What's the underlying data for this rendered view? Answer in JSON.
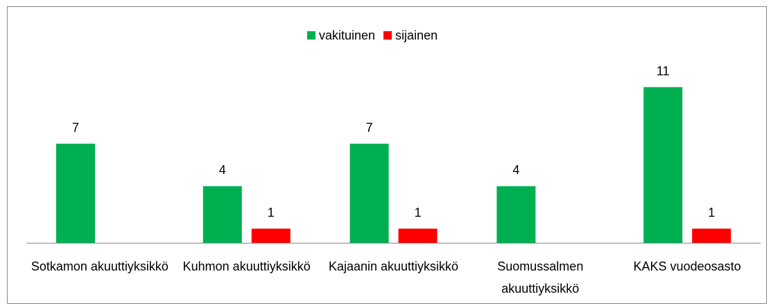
{
  "chart_data": {
    "type": "bar",
    "categories": [
      "Sotkamon akuuttiyksikkö",
      "Kuhmon akuuttiyksikkö",
      "Kajaanin akuuttiyksikkö",
      "Suomussalmen akuuttiyksikkö",
      "KAKS vuodeosasto"
    ],
    "series": [
      {
        "name": "vakituinen",
        "color": "#00b050",
        "values": [
          7,
          4,
          7,
          4,
          11
        ]
      },
      {
        "name": "sijainen",
        "color": "#ff0000",
        "values": [
          null,
          1,
          1,
          null,
          1
        ]
      }
    ],
    "legend": "top"
  }
}
